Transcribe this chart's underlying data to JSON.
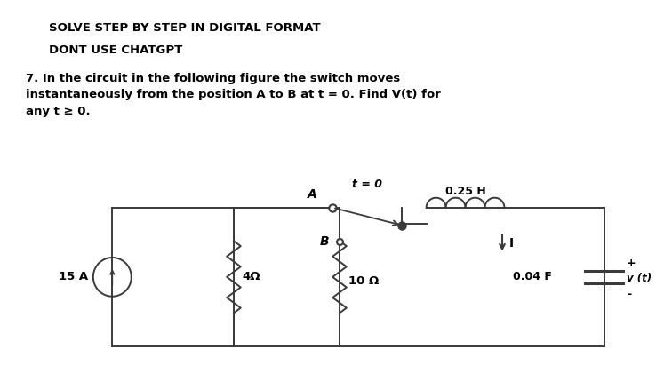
{
  "title1": "SOLVE STEP BY STEP IN DIGITAL FORMAT",
  "title2": "DONT USE CHATGPT",
  "problem_text": "7. In the circuit in the following figure the switch moves\ninstantaneously from the position A to B at t = 0. Find V(t) for\nany t ≥ 0.",
  "bg_color": "#ffffff",
  "text_color": "#000000",
  "circuit_color": "#3a3a3a",
  "font_size_title": 9.5,
  "font_size_problem": 9.5,
  "current_source": "15 A",
  "r1_label": "4Ω",
  "r2_label": "10 Ω",
  "inductor_label": "0.25 H",
  "capacitor_label": "0.04 F",
  "voltage_label": "v (t)",
  "switch_label_a": "A",
  "switch_label_b": "B",
  "switch_time": "t = 0",
  "current_label": "I",
  "plus_label": "+",
  "minus_label": "-"
}
